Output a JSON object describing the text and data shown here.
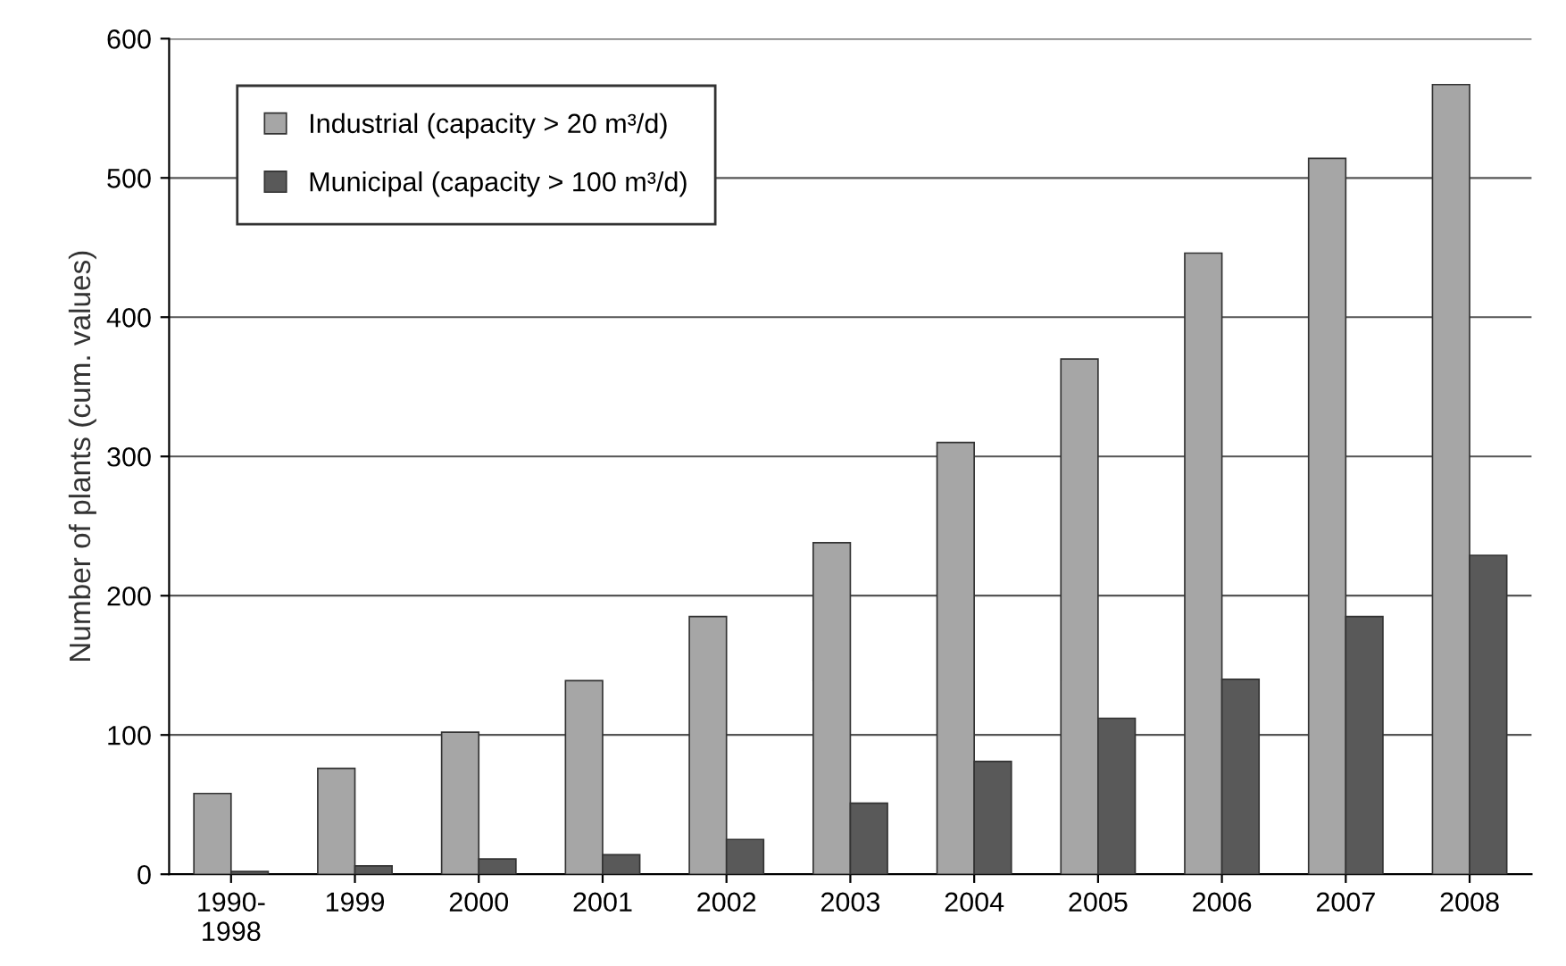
{
  "chart_data": {
    "type": "bar",
    "ylabel": "Number of plants (cum. values)",
    "categories": [
      "1990-\n1998",
      "1999",
      "2000",
      "2001",
      "2002",
      "2003",
      "2004",
      "2005",
      "2006",
      "2007",
      "2008"
    ],
    "series": [
      {
        "name": "Industrial (capacity > 20 m³/d)",
        "color": "#a6a6a6",
        "values": [
          58,
          76,
          102,
          139,
          185,
          238,
          310,
          370,
          446,
          514,
          567
        ]
      },
      {
        "name": "Municipal (capacity > 100 m³/d)",
        "color": "#595959",
        "values": [
          2,
          6,
          11,
          14,
          25,
          51,
          81,
          112,
          140,
          185,
          229
        ]
      }
    ],
    "ylim": [
      0,
      600
    ],
    "yticks": [
      0,
      100,
      200,
      300,
      400,
      500,
      600
    ],
    "grid": "y",
    "legend": "top left"
  }
}
